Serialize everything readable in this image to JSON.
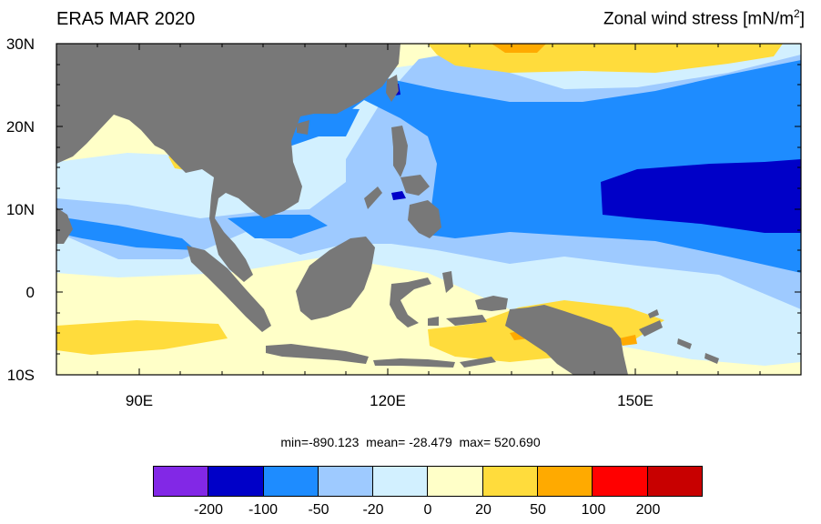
{
  "header": {
    "title_left": "ERA5 MAR 2020",
    "title_right_prefix": "Zonal wind stress [mN/m",
    "title_right_sup": "2",
    "title_right_suffix": "]"
  },
  "map": {
    "lon_range": [
      80,
      170
    ],
    "lat_range": [
      -10,
      30
    ],
    "lat_tick_labels": [
      "30N",
      "20N",
      "10N",
      "0",
      "10S"
    ],
    "lon_tick_labels": [
      "90E",
      "120E",
      "150E"
    ],
    "land_color": "#787878"
  },
  "stats": {
    "text": "min=-890.123  mean= -28.479  max= 520.690"
  },
  "colorbar": {
    "colors": [
      "#8228e6",
      "#0000c8",
      "#1e8cff",
      "#9ecaff",
      "#d2f0ff",
      "#ffffc8",
      "#ffdc3c",
      "#ffaa00",
      "#ff0000",
      "#c80000"
    ],
    "labels": [
      "-200",
      "-100",
      "-50",
      "-20",
      "0",
      "20",
      "50",
      "100",
      "200"
    ]
  }
}
